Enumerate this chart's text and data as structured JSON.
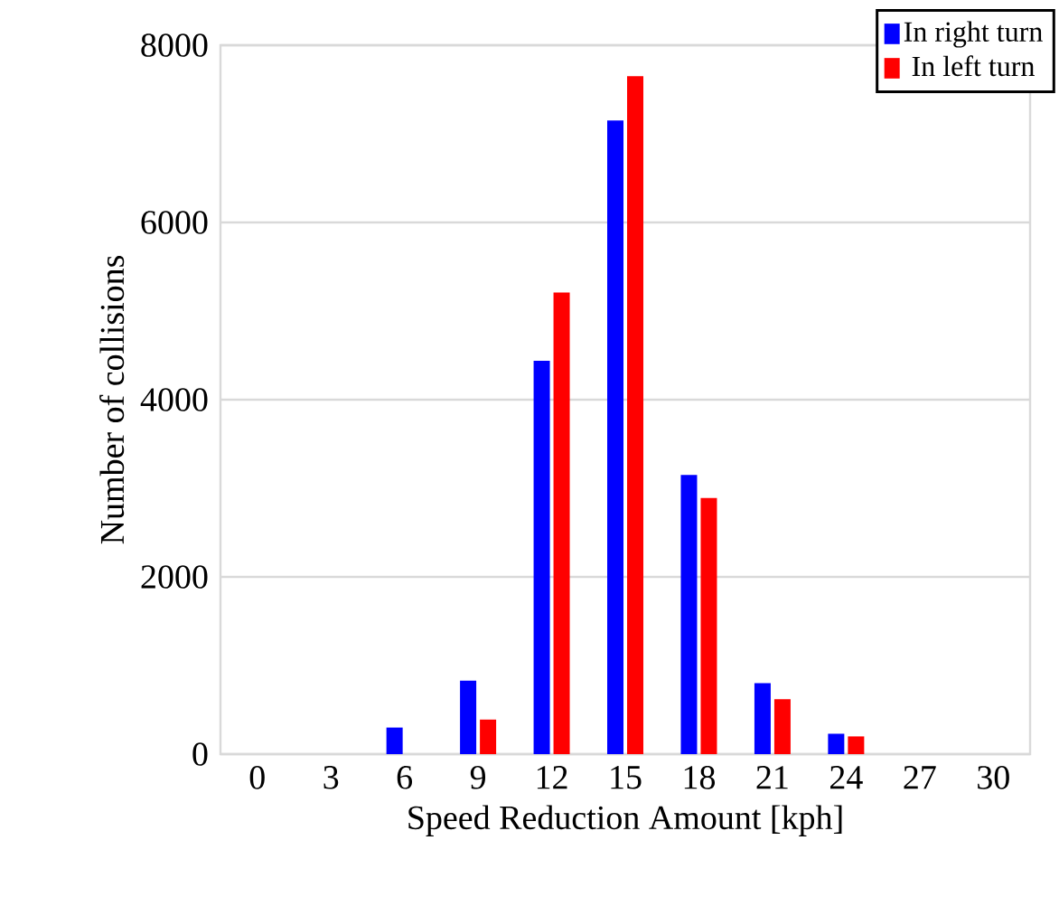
{
  "chart_data": {
    "type": "bar",
    "xlabel": "Speed Reduction Amount [kph]",
    "ylabel": "Number of collisions",
    "categories": [
      "0",
      "3",
      "6",
      "9",
      "12",
      "15",
      "18",
      "21",
      "24",
      "27",
      "30"
    ],
    "series": [
      {
        "name": "In right turn",
        "color": "#0000ff",
        "values": [
          0,
          0,
          300,
          830,
          4440,
          7150,
          3150,
          800,
          230,
          0,
          0
        ]
      },
      {
        "name": "In left turn",
        "color": "#ff0000",
        "values": [
          0,
          0,
          0,
          390,
          5210,
          7650,
          2890,
          620,
          200,
          0,
          0
        ]
      }
    ],
    "ylim": [
      0,
      8000
    ],
    "yticks": [
      0,
      2000,
      4000,
      6000,
      8000
    ],
    "grid": "y",
    "legend": "top right"
  }
}
